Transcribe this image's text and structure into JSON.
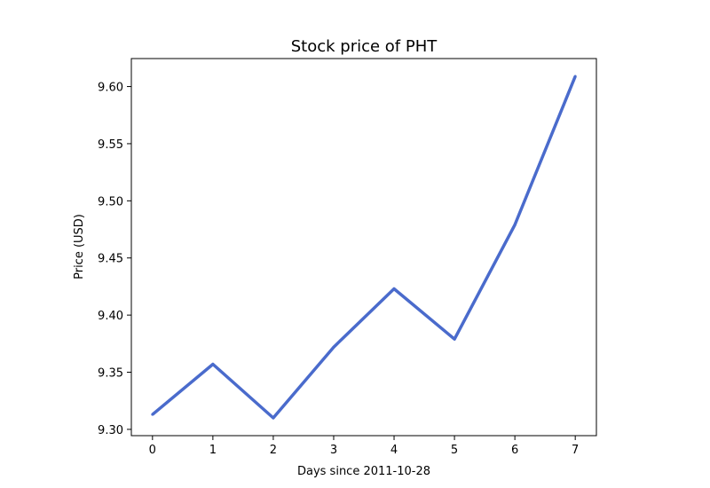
{
  "chart_data": {
    "type": "line",
    "title": "Stock price of PHT",
    "xlabel": "Days since 2011-10-28",
    "ylabel": "Price (USD)",
    "x": [
      0,
      1,
      2,
      3,
      4,
      5,
      6,
      7
    ],
    "x_ticks": [
      "0",
      "1",
      "2",
      "3",
      "4",
      "5",
      "6",
      "7"
    ],
    "y_ticks": [
      "9.30",
      "9.35",
      "9.40",
      "9.45",
      "9.50",
      "9.55",
      "9.60"
    ],
    "xlim": [
      -0.35,
      7.35
    ],
    "ylim": [
      9.2945,
      9.6245
    ],
    "grid": false,
    "series": [
      {
        "color": "#4a6bcc",
        "values": [
          9.313,
          9.357,
          9.31,
          9.372,
          9.423,
          9.379,
          9.479,
          9.609
        ]
      }
    ]
  }
}
